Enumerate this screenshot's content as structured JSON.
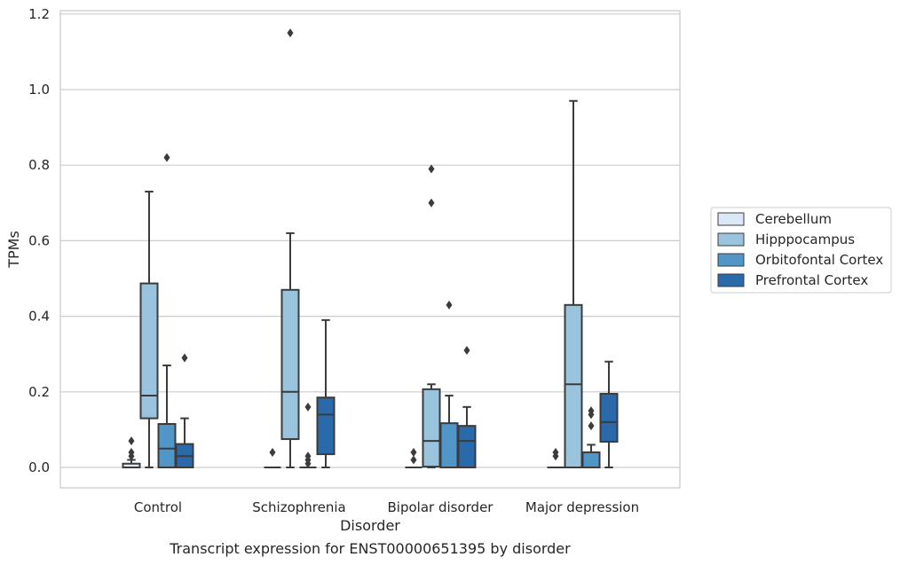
{
  "chart_data": {
    "type": "box",
    "caption": "Transcript expression for ENST00000651395 by disorder",
    "xlabel": "Disorder",
    "ylabel": "TPMs",
    "ylim": [
      -0.055,
      1.21
    ],
    "yticks": [
      "0.0",
      "0.2",
      "0.4",
      "0.6",
      "0.8",
      "1.0",
      "1.2"
    ],
    "ytick_values": [
      0.0,
      0.2,
      0.4,
      0.6,
      0.8,
      1.0,
      1.2
    ],
    "grid": "horizontal",
    "legend_position": "right",
    "categories": [
      "Control",
      "Schizophrenia",
      "Bipolar disorder",
      "Major depression"
    ],
    "series": [
      {
        "name": "Cerebellum",
        "color": "#dbe9f6",
        "boxes": [
          {
            "q1": 0.0,
            "median": 0.0,
            "q3": 0.01,
            "whisker_low": 0.0,
            "whisker_high": 0.02,
            "outliers": [
              0.03,
              0.04,
              0.07
            ]
          },
          {
            "q1": 0.0,
            "median": 0.0,
            "q3": 0.0,
            "whisker_low": 0.0,
            "whisker_high": 0.0,
            "outliers": [
              0.04
            ]
          },
          {
            "q1": 0.0,
            "median": 0.0,
            "q3": 0.0,
            "whisker_low": 0.0,
            "whisker_high": 0.0,
            "outliers": [
              0.02,
              0.04
            ]
          },
          {
            "q1": 0.0,
            "median": 0.0,
            "q3": 0.0,
            "whisker_low": 0.0,
            "whisker_high": 0.0,
            "outliers": [
              0.03,
              0.04
            ]
          }
        ]
      },
      {
        "name": "Hipppocampus",
        "color": "#9ac4de",
        "boxes": [
          {
            "q1": 0.13,
            "median": 0.19,
            "q3": 0.487,
            "whisker_low": 0.0,
            "whisker_high": 0.73,
            "outliers": []
          },
          {
            "q1": 0.075,
            "median": 0.2,
            "q3": 0.47,
            "whisker_low": 0.0,
            "whisker_high": 0.62,
            "outliers": [
              1.15
            ]
          },
          {
            "q1": 0.002,
            "median": 0.07,
            "q3": 0.207,
            "whisker_low": 0.0,
            "whisker_high": 0.22,
            "outliers": [
              0.7,
              0.79
            ]
          },
          {
            "q1": 0.0,
            "median": 0.22,
            "q3": 0.43,
            "whisker_low": 0.0,
            "whisker_high": 0.97,
            "outliers": []
          }
        ]
      },
      {
        "name": "Orbitofontal Cortex",
        "color": "#5096c7",
        "boxes": [
          {
            "q1": 0.0,
            "median": 0.05,
            "q3": 0.115,
            "whisker_low": 0.0,
            "whisker_high": 0.27,
            "outliers": [
              0.82
            ]
          },
          {
            "q1": 0.0,
            "median": 0.0,
            "q3": 0.0,
            "whisker_low": 0.0,
            "whisker_high": 0.0,
            "outliers": [
              0.01,
              0.02,
              0.03,
              0.16
            ]
          },
          {
            "q1": 0.0,
            "median": 0.0,
            "q3": 0.117,
            "whisker_low": 0.0,
            "whisker_high": 0.19,
            "outliers": [
              0.43
            ]
          },
          {
            "q1": 0.0,
            "median": 0.0,
            "q3": 0.04,
            "whisker_low": 0.0,
            "whisker_high": 0.06,
            "outliers": [
              0.11,
              0.14,
              0.15
            ]
          }
        ]
      },
      {
        "name": "Prefrontal Cortex",
        "color": "#2a6aab",
        "boxes": [
          {
            "q1": 0.0,
            "median": 0.03,
            "q3": 0.062,
            "whisker_low": 0.0,
            "whisker_high": 0.13,
            "outliers": [
              0.29
            ]
          },
          {
            "q1": 0.035,
            "median": 0.14,
            "q3": 0.185,
            "whisker_low": 0.0,
            "whisker_high": 0.39,
            "outliers": []
          },
          {
            "q1": 0.0,
            "median": 0.07,
            "q3": 0.11,
            "whisker_low": 0.0,
            "whisker_high": 0.16,
            "outliers": [
              0.31
            ]
          },
          {
            "q1": 0.068,
            "median": 0.12,
            "q3": 0.195,
            "whisker_low": 0.0,
            "whisker_high": 0.28,
            "outliers": []
          }
        ]
      }
    ]
  }
}
